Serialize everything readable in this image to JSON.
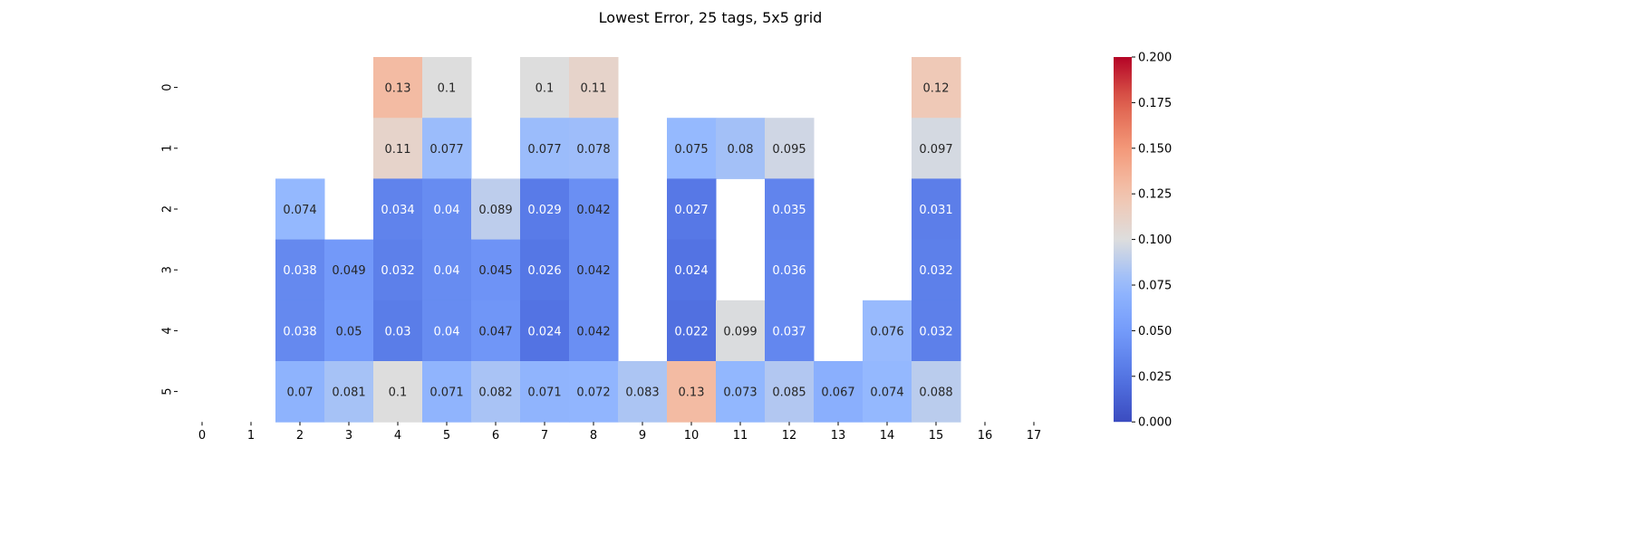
{
  "chart_data": {
    "type": "heatmap",
    "title": "Lowest Error, 25 tags, 5x5 grid",
    "xlabel": "",
    "ylabel": "",
    "x": [
      "0",
      "1",
      "2",
      "3",
      "4",
      "5",
      "6",
      "7",
      "8",
      "9",
      "10",
      "11",
      "12",
      "13",
      "14",
      "15",
      "16",
      "17"
    ],
    "y": [
      "0",
      "1",
      "2",
      "3",
      "4",
      "5"
    ],
    "values": [
      [
        null,
        null,
        null,
        null,
        0.13,
        0.1,
        null,
        0.1,
        0.11,
        null,
        null,
        null,
        null,
        null,
        null,
        0.12,
        null,
        null
      ],
      [
        null,
        null,
        null,
        null,
        0.11,
        0.077,
        null,
        0.077,
        0.078,
        null,
        0.075,
        0.08,
        0.095,
        null,
        null,
        0.097,
        null,
        null
      ],
      [
        null,
        null,
        0.074,
        null,
        0.034,
        0.04,
        0.089,
        0.029,
        0.042,
        null,
        0.027,
        null,
        0.035,
        null,
        null,
        0.031,
        null,
        null
      ],
      [
        null,
        null,
        0.038,
        0.049,
        0.032,
        0.04,
        0.045,
        0.026,
        0.042,
        null,
        0.024,
        null,
        0.036,
        null,
        null,
        0.032,
        null,
        null
      ],
      [
        null,
        null,
        0.038,
        0.05,
        0.03,
        0.04,
        0.047,
        0.024,
        0.042,
        null,
        0.022,
        0.099,
        0.037,
        null,
        0.076,
        0.032,
        null,
        null
      ],
      [
        null,
        null,
        0.07,
        0.081,
        0.1,
        0.071,
        0.082,
        0.071,
        0.072,
        0.083,
        0.13,
        0.073,
        0.085,
        0.067,
        0.074,
        0.088,
        null,
        null
      ]
    ],
    "colormap": "coolwarm",
    "vmin": 0.0,
    "vmax": 0.2,
    "colorbar_ticks": [
      "0.000",
      "0.025",
      "0.050",
      "0.075",
      "0.100",
      "0.125",
      "0.150",
      "0.175",
      "0.200"
    ],
    "grid": false,
    "annotate": true
  }
}
